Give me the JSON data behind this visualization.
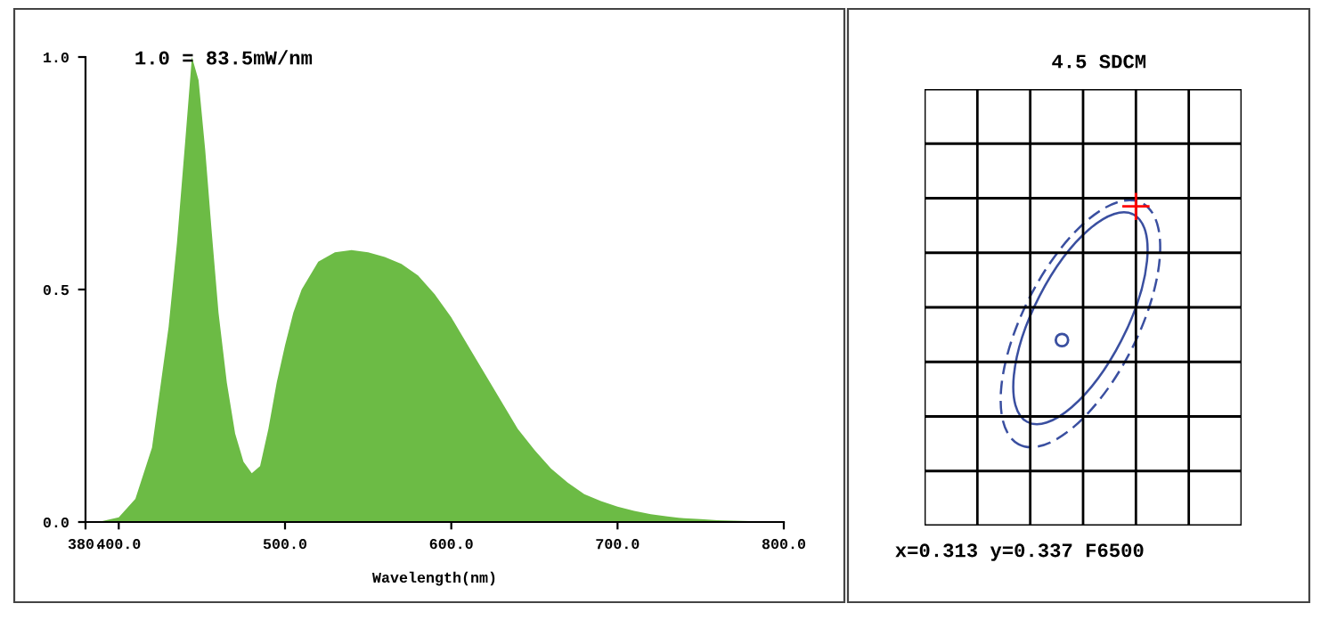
{
  "chart_data": [
    {
      "type": "area",
      "xlabel": "Wavelength(nm)",
      "annotations": [
        "1.0 = 83.5mW/nm"
      ],
      "xlim": [
        380,
        800
      ],
      "ylim": [
        0,
        1.0
      ],
      "xticks": [
        {
          "value": 380,
          "label": "380."
        },
        {
          "value": 400,
          "label": "400.0"
        },
        {
          "value": 500,
          "label": "500.0"
        },
        {
          "value": 600,
          "label": "600.0"
        },
        {
          "value": 700,
          "label": "700.0"
        },
        {
          "value": 800,
          "label": "800.0"
        }
      ],
      "yticks": [
        {
          "value": 0,
          "label": "0.0"
        },
        {
          "value": 0.5,
          "label": "0.5"
        },
        {
          "value": 1.0,
          "label": "1.0"
        }
      ],
      "grid": false,
      "series": [
        {
          "color": "#6cbb45",
          "x": [
            380,
            390,
            400,
            410,
            420,
            430,
            435,
            440,
            444,
            448,
            452,
            456,
            460,
            465,
            470,
            475,
            480,
            485,
            490,
            495,
            500,
            505,
            510,
            520,
            530,
            540,
            550,
            560,
            570,
            580,
            590,
            600,
            610,
            620,
            630,
            640,
            650,
            660,
            670,
            680,
            690,
            700,
            710,
            720,
            730,
            740,
            750,
            760,
            770,
            780,
            790,
            800
          ],
          "values": [
            0,
            0.002,
            0.01,
            0.05,
            0.16,
            0.42,
            0.6,
            0.82,
            1.0,
            0.95,
            0.8,
            0.62,
            0.45,
            0.3,
            0.19,
            0.13,
            0.105,
            0.12,
            0.2,
            0.3,
            0.38,
            0.45,
            0.5,
            0.56,
            0.58,
            0.585,
            0.58,
            0.57,
            0.555,
            0.53,
            0.49,
            0.44,
            0.38,
            0.32,
            0.26,
            0.2,
            0.155,
            0.115,
            0.085,
            0.06,
            0.045,
            0.033,
            0.024,
            0.017,
            0.012,
            0.008,
            0.006,
            0.004,
            0.003,
            0.002,
            0.001,
            0
          ]
        }
      ]
    },
    {
      "type": "other",
      "title": "4.5 SDCM",
      "annotations": [
        "x=0.313 y=0.337 F6500"
      ]
    }
  ]
}
